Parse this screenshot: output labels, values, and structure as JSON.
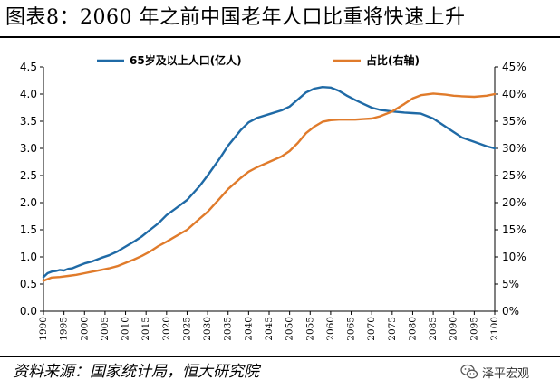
{
  "title": "图表8：2060 年之前中国老年人口比重将快速上升",
  "source": "资料来源：国家统计局，恒大研究院",
  "brand": {
    "text": "泽平宏观",
    "icon": "wechat-icon"
  },
  "colors": {
    "population": "#1f6aa6",
    "share": "#e07b2b",
    "axis": "#000000"
  },
  "chart_data": {
    "type": "line",
    "title": "",
    "xlabel": "",
    "ylabel": "",
    "xlim": [
      1990,
      2100
    ],
    "ylim": [
      0,
      4.5
    ],
    "y2lim": [
      0,
      45
    ],
    "grid": false,
    "legend_placement": "top",
    "x_ticks": [
      "1990",
      "1995",
      "2000",
      "2005",
      "2010",
      "2015",
      "2020",
      "2025",
      "2030",
      "2035",
      "2040",
      "2045",
      "2050",
      "2055",
      "2060",
      "2065",
      "2070",
      "2075",
      "2080",
      "2085",
      "2090",
      "2095",
      "2100"
    ],
    "y_ticks": [
      "4.5",
      "4.0",
      "3.5",
      "3.0",
      "2.5",
      "2.0",
      "1.5",
      "1.0",
      "0.5",
      "0.0"
    ],
    "y2_ticks": [
      "45%",
      "40%",
      "35%",
      "30%",
      "25%",
      "20%",
      "15%",
      "10%",
      "5%",
      "0%"
    ],
    "series": [
      {
        "name": "65岁及以上人口(亿人)",
        "axis": "left",
        "x": [
          1990,
          1991,
          1992,
          1993,
          1994,
          1995,
          1996,
          1997,
          1998,
          1999,
          2000,
          2002,
          2004,
          2006,
          2008,
          2010,
          2012,
          2014,
          2016,
          2018,
          2020,
          2022,
          2025,
          2028,
          2030,
          2033,
          2035,
          2038,
          2040,
          2042,
          2045,
          2048,
          2050,
          2052,
          2054,
          2056,
          2058,
          2060,
          2062,
          2064,
          2066,
          2068,
          2070,
          2072,
          2075,
          2078,
          2080,
          2082,
          2085,
          2088,
          2090,
          2092,
          2095,
          2098,
          2100
        ],
        "values": [
          0.63,
          0.7,
          0.73,
          0.74,
          0.76,
          0.75,
          0.78,
          0.79,
          0.82,
          0.85,
          0.88,
          0.92,
          0.98,
          1.03,
          1.1,
          1.19,
          1.28,
          1.38,
          1.5,
          1.62,
          1.77,
          1.88,
          2.05,
          2.3,
          2.5,
          2.82,
          3.05,
          3.33,
          3.48,
          3.56,
          3.63,
          3.7,
          3.77,
          3.9,
          4.03,
          4.1,
          4.13,
          4.12,
          4.06,
          3.97,
          3.89,
          3.82,
          3.75,
          3.71,
          3.68,
          3.66,
          3.65,
          3.64,
          3.55,
          3.4,
          3.3,
          3.2,
          3.12,
          3.04,
          3.0
        ]
      },
      {
        "name": "占比(右轴)",
        "axis": "right",
        "x": [
          1990,
          1992,
          1994,
          1996,
          1998,
          2000,
          2002,
          2004,
          2006,
          2008,
          2010,
          2012,
          2014,
          2016,
          2018,
          2020,
          2022,
          2025,
          2028,
          2030,
          2033,
          2035,
          2038,
          2040,
          2042,
          2045,
          2048,
          2050,
          2052,
          2054,
          2056,
          2058,
          2060,
          2062,
          2064,
          2066,
          2068,
          2070,
          2072,
          2075,
          2078,
          2080,
          2082,
          2085,
          2088,
          2090,
          2092,
          2095,
          2098,
          2100
        ],
        "values": [
          5.6,
          6.2,
          6.3,
          6.5,
          6.7,
          7.0,
          7.3,
          7.6,
          7.9,
          8.3,
          8.9,
          9.5,
          10.2,
          11.0,
          12.0,
          12.8,
          13.7,
          15.0,
          17.0,
          18.3,
          20.8,
          22.5,
          24.5,
          25.7,
          26.5,
          27.5,
          28.5,
          29.5,
          31.0,
          32.8,
          34.0,
          34.9,
          35.2,
          35.3,
          35.3,
          35.3,
          35.4,
          35.5,
          35.9,
          36.8,
          38.2,
          39.2,
          39.8,
          40.1,
          39.9,
          39.7,
          39.6,
          39.5,
          39.7,
          40.0
        ]
      }
    ]
  }
}
